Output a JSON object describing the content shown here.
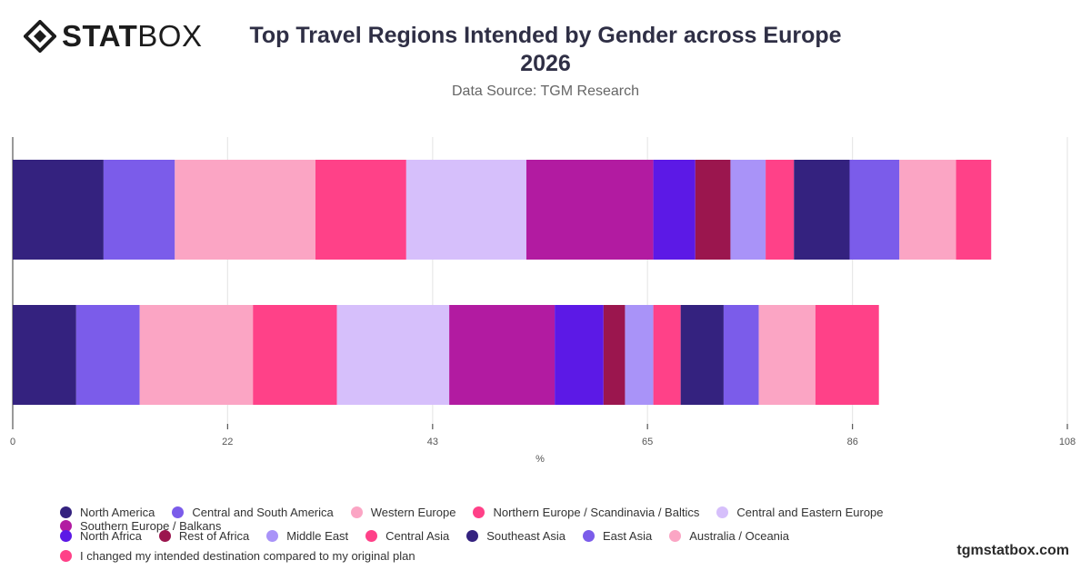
{
  "brand": {
    "logo_bold": "STAT",
    "logo_light": "BOX",
    "logo_icon": "diamond-logo-icon"
  },
  "header": {
    "title_line1": "Top Travel Regions Intended by Gender across Europe",
    "title_line2": "2026",
    "subtitle": "Data Source: TGM Research"
  },
  "footer": {
    "site": "tgmstatbox.com"
  },
  "chart_data": {
    "type": "bar",
    "orientation": "horizontal",
    "stacked": true,
    "xlabel": "%",
    "xlim": [
      0,
      108
    ],
    "x_ticks": [
      0,
      22,
      43,
      65,
      86,
      108
    ],
    "grid": true,
    "legend_position": "bottom-left",
    "categories": [
      "",
      ""
    ],
    "series": [
      {
        "name": "North America",
        "color": "#34227f",
        "values": [
          9.3,
          6.5
        ]
      },
      {
        "name": "Central and South America",
        "color": "#7b5cea",
        "values": [
          7.3,
          6.5
        ]
      },
      {
        "name": "Western Europe",
        "color": "#fba5c4",
        "values": [
          14.4,
          11.6
        ]
      },
      {
        "name": "Northern Europe / Scandinavia / Baltics",
        "color": "#ff4188",
        "values": [
          9.3,
          8.6
        ]
      },
      {
        "name": "Central and Eastern Europe",
        "color": "#d6bffb",
        "values": [
          12.3,
          11.5
        ]
      },
      {
        "name": "Southern Europe / Balkans",
        "color": "#b21ba1",
        "values": [
          13.0,
          10.8
        ]
      },
      {
        "name": "North Africa",
        "color": "#5c19e6",
        "values": [
          4.3,
          5.0
        ]
      },
      {
        "name": "Rest of Africa",
        "color": "#9b164e",
        "values": [
          3.6,
          2.2
        ]
      },
      {
        "name": "Middle East",
        "color": "#a993f8",
        "values": [
          3.6,
          2.9
        ]
      },
      {
        "name": "Central Asia",
        "color": "#ff4188",
        "values": [
          2.9,
          2.8
        ]
      },
      {
        "name": "Southeast Asia",
        "color": "#34227f",
        "values": [
          5.7,
          4.4
        ]
      },
      {
        "name": "East Asia",
        "color": "#7b5cea",
        "values": [
          5.1,
          3.6
        ]
      },
      {
        "name": "Australia / Oceania",
        "color": "#fba5c4",
        "values": [
          5.8,
          5.8
        ]
      },
      {
        "name": "I changed my intended destination compared to my original plan",
        "color": "#ff4188",
        "values": [
          3.6,
          6.5
        ]
      }
    ]
  }
}
